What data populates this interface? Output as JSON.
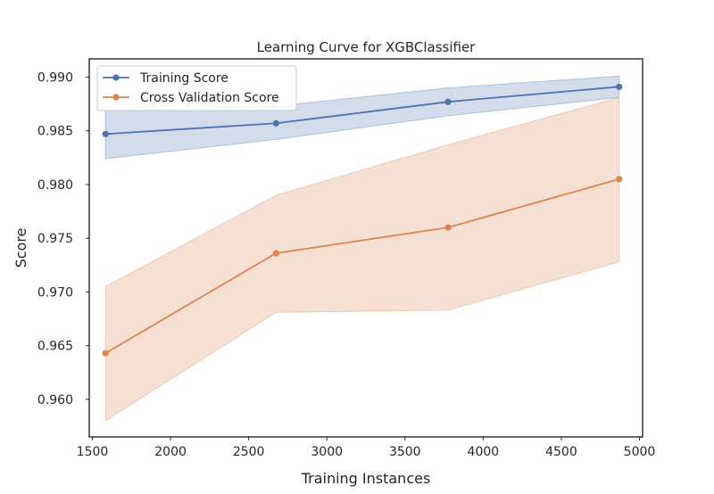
{
  "chart_data": {
    "type": "line",
    "title": "Learning Curve for XGBClassifier",
    "xlabel": "Training Instances",
    "ylabel": "Score",
    "xlim": [
      1480,
      5020
    ],
    "ylim": [
      0.9565,
      0.9917
    ],
    "xticks": [
      1500,
      2000,
      2500,
      3000,
      3500,
      4000,
      4500,
      5000
    ],
    "xtick_labels": [
      "1500",
      "2000",
      "2500",
      "3000",
      "3500",
      "4000",
      "4500",
      "5000"
    ],
    "yticks": [
      0.96,
      0.965,
      0.97,
      0.975,
      0.98,
      0.985,
      0.99
    ],
    "ytick_labels": [
      "0.960",
      "0.965",
      "0.970",
      "0.975",
      "0.980",
      "0.985",
      "0.990"
    ],
    "grid": false,
    "legend_position": "top-left",
    "x": [
      1584,
      2675,
      3775,
      4870
    ],
    "series": [
      {
        "name": "Training Score",
        "color": "#4c72b0",
        "values": [
          0.9847,
          0.9857,
          0.9877,
          0.9891
        ],
        "band_lower": [
          0.9824,
          0.9842,
          0.9864,
          0.9881
        ],
        "band_upper": [
          0.9869,
          0.9873,
          0.989,
          0.9901
        ]
      },
      {
        "name": "Cross Validation Score",
        "color": "#dd8452",
        "values": [
          0.9643,
          0.9736,
          0.976,
          0.9805
        ],
        "band_lower": [
          0.958,
          0.9681,
          0.9683,
          0.9728
        ],
        "band_upper": [
          0.9705,
          0.979,
          0.9837,
          0.9881
        ]
      }
    ]
  }
}
